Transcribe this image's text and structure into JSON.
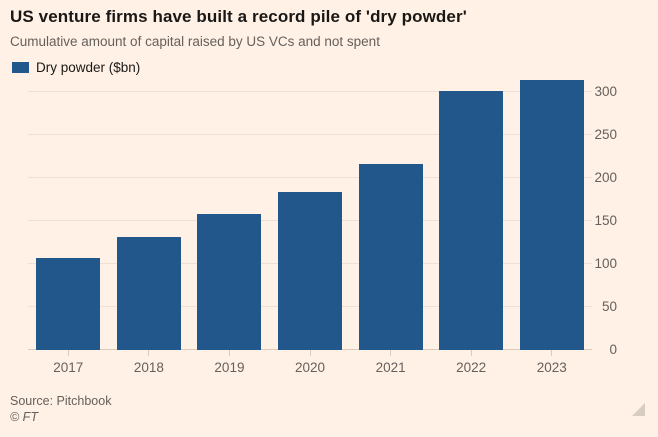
{
  "title": "US venture firms have built a record pile of 'dry powder'",
  "subtitle": "Cumulative amount of capital raised by US VCs and not spent",
  "legend": {
    "label": "Dry powder ($bn)"
  },
  "source": "Source: Pitchbook",
  "copyright": "© FT",
  "colors": {
    "background": "#fff1e5",
    "bar": "#22578c",
    "grid": "#eee0d4",
    "grid_dark": "#ddccbe",
    "text_dark": "#1a1817",
    "text_muted": "#66605c"
  },
  "chart_data": {
    "type": "bar",
    "title": "US venture firms have built a record pile of 'dry powder'",
    "subtitle": "Cumulative amount of capital raised by US VCs and not spent",
    "series_name": "Dry powder ($bn)",
    "categories": [
      "2017",
      "2018",
      "2019",
      "2020",
      "2021",
      "2022",
      "2023"
    ],
    "values": [
      107,
      131,
      158,
      184,
      216,
      301,
      314
    ],
    "xlabel": "",
    "ylabel": "Dry powder ($bn)",
    "ylim": [
      0,
      314
    ],
    "yticks": [
      0,
      50,
      100,
      150,
      200,
      250,
      300
    ],
    "y_axis_side": "right",
    "grid": true,
    "legend_position": "top-left",
    "source": "Pitchbook"
  }
}
